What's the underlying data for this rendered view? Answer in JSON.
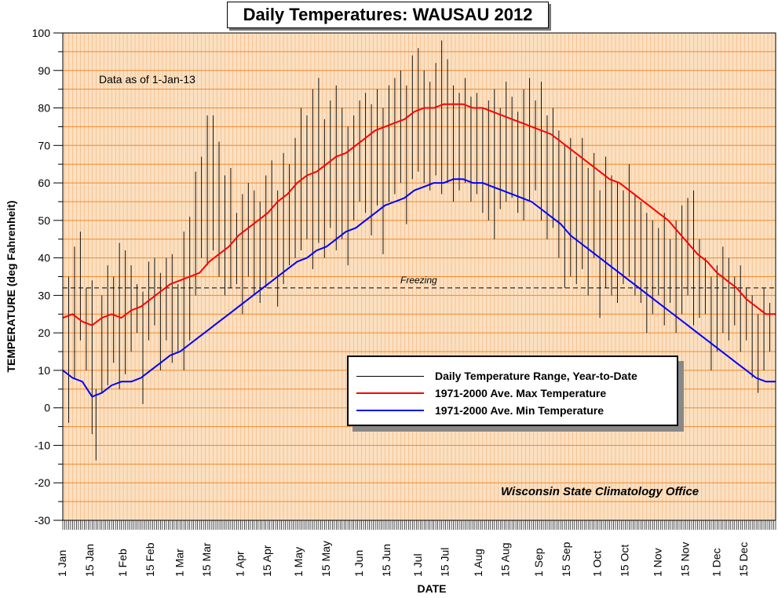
{
  "chart_data": {
    "type": "line",
    "title": "Daily Temperatures: WAUSAU 2012",
    "note": "Data as of 1-Jan-13",
    "organization": "Wisconsin State Climatology Office",
    "xlabel": "DATE",
    "ylabel": "TEMPERATURE (deg Fahrenheit)",
    "ylim": [
      -30,
      100
    ],
    "yticks": [
      100,
      90,
      80,
      70,
      60,
      50,
      40,
      30,
      20,
      10,
      0,
      -10,
      -20,
      -30
    ],
    "reference_line": {
      "value": 32,
      "label": "Freezing"
    },
    "grid": true,
    "legend": {
      "placement": "lower-right"
    },
    "x_tick_labels": [
      {
        "day": 0,
        "label": "1 Jan"
      },
      {
        "day": 14,
        "label": "15 Jan"
      },
      {
        "day": 31,
        "label": "1 Feb"
      },
      {
        "day": 45,
        "label": "15 Feb"
      },
      {
        "day": 60,
        "label": "1 Mar"
      },
      {
        "day": 74,
        "label": "15 Mar"
      },
      {
        "day": 91,
        "label": "1 Apr"
      },
      {
        "day": 105,
        "label": "15 Apr"
      },
      {
        "day": 121,
        "label": "1 May"
      },
      {
        "day": 135,
        "label": "15 May"
      },
      {
        "day": 152,
        "label": "1 Jun"
      },
      {
        "day": 166,
        "label": "15 Jun"
      },
      {
        "day": 182,
        "label": "1 Jul"
      },
      {
        "day": 196,
        "label": "15 Jul"
      },
      {
        "day": 213,
        "label": "1 Aug"
      },
      {
        "day": 227,
        "label": "15 Aug"
      },
      {
        "day": 244,
        "label": "1 Sep"
      },
      {
        "day": 258,
        "label": "15 Sep"
      },
      {
        "day": 274,
        "label": "1 Oct"
      },
      {
        "day": 288,
        "label": "15 Oct"
      },
      {
        "day": 305,
        "label": "1 Nov"
      },
      {
        "day": 319,
        "label": "15 Nov"
      },
      {
        "day": 335,
        "label": "1 Dec"
      },
      {
        "day": 349,
        "label": "15 Dec"
      }
    ],
    "series": [
      {
        "name": "Daily Temperature Range, Year-to-Date",
        "color": "#000000",
        "style": "range-bars",
        "ranges": [
          {
            "day": 0,
            "low": 18,
            "high": 40
          },
          {
            "day": 3,
            "low": -4,
            "high": 35
          },
          {
            "day": 6,
            "low": 8,
            "high": 43
          },
          {
            "day": 9,
            "low": 18,
            "high": 47
          },
          {
            "day": 12,
            "low": 10,
            "high": 32
          },
          {
            "day": 15,
            "low": -7,
            "high": 34
          },
          {
            "day": 17,
            "low": -14,
            "high": 5
          },
          {
            "day": 20,
            "low": 4,
            "high": 30
          },
          {
            "day": 23,
            "low": 6,
            "high": 38
          },
          {
            "day": 26,
            "low": 12,
            "high": 35
          },
          {
            "day": 29,
            "low": 5,
            "high": 44
          },
          {
            "day": 32,
            "low": 9,
            "high": 42
          },
          {
            "day": 35,
            "low": 15,
            "high": 38
          },
          {
            "day": 38,
            "low": 20,
            "high": 33
          },
          {
            "day": 41,
            "low": 1,
            "high": 31
          },
          {
            "day": 44,
            "low": 18,
            "high": 39
          },
          {
            "day": 47,
            "low": 22,
            "high": 40
          },
          {
            "day": 50,
            "low": 10,
            "high": 36
          },
          {
            "day": 53,
            "low": 18,
            "high": 40
          },
          {
            "day": 56,
            "low": 12,
            "high": 41
          },
          {
            "day": 59,
            "low": 15,
            "high": 33
          },
          {
            "day": 62,
            "low": 10,
            "high": 47
          },
          {
            "day": 65,
            "low": 18,
            "high": 51
          },
          {
            "day": 68,
            "low": 30,
            "high": 63
          },
          {
            "day": 71,
            "low": 40,
            "high": 67
          },
          {
            "day": 74,
            "low": 38,
            "high": 78
          },
          {
            "day": 77,
            "low": 42,
            "high": 78
          },
          {
            "day": 80,
            "low": 35,
            "high": 71
          },
          {
            "day": 83,
            "low": 30,
            "high": 62
          },
          {
            "day": 86,
            "low": 32,
            "high": 64
          },
          {
            "day": 89,
            "low": 33,
            "high": 52
          },
          {
            "day": 92,
            "low": 25,
            "high": 57
          },
          {
            "day": 95,
            "low": 35,
            "high": 60
          },
          {
            "day": 98,
            "low": 30,
            "high": 58
          },
          {
            "day": 101,
            "low": 28,
            "high": 55
          },
          {
            "day": 104,
            "low": 32,
            "high": 62
          },
          {
            "day": 107,
            "low": 35,
            "high": 66
          },
          {
            "day": 110,
            "low": 27,
            "high": 58
          },
          {
            "day": 113,
            "low": 33,
            "high": 68
          },
          {
            "day": 116,
            "low": 38,
            "high": 65
          },
          {
            "day": 119,
            "low": 40,
            "high": 72
          },
          {
            "day": 122,
            "low": 42,
            "high": 80
          },
          {
            "day": 125,
            "low": 45,
            "high": 78
          },
          {
            "day": 128,
            "low": 37,
            "high": 85
          },
          {
            "day": 131,
            "low": 44,
            "high": 88
          },
          {
            "day": 134,
            "low": 40,
            "high": 77
          },
          {
            "day": 137,
            "low": 48,
            "high": 82
          },
          {
            "day": 140,
            "low": 42,
            "high": 86
          },
          {
            "day": 143,
            "low": 45,
            "high": 80
          },
          {
            "day": 146,
            "low": 38,
            "high": 75
          },
          {
            "day": 149,
            "low": 50,
            "high": 78
          },
          {
            "day": 152,
            "low": 55,
            "high": 82
          },
          {
            "day": 155,
            "low": 52,
            "high": 84
          },
          {
            "day": 158,
            "low": 46,
            "high": 81
          },
          {
            "day": 161,
            "low": 54,
            "high": 85
          },
          {
            "day": 164,
            "low": 41,
            "high": 80
          },
          {
            "day": 167,
            "low": 55,
            "high": 86
          },
          {
            "day": 170,
            "low": 57,
            "high": 88
          },
          {
            "day": 173,
            "low": 60,
            "high": 90
          },
          {
            "day": 176,
            "low": 49,
            "high": 86
          },
          {
            "day": 179,
            "low": 61,
            "high": 94
          },
          {
            "day": 182,
            "low": 63,
            "high": 96
          },
          {
            "day": 185,
            "low": 60,
            "high": 90
          },
          {
            "day": 188,
            "low": 58,
            "high": 87
          },
          {
            "day": 191,
            "low": 62,
            "high": 92
          },
          {
            "day": 194,
            "low": 57,
            "high": 98
          },
          {
            "day": 197,
            "low": 60,
            "high": 93
          },
          {
            "day": 200,
            "low": 55,
            "high": 86
          },
          {
            "day": 203,
            "low": 58,
            "high": 84
          },
          {
            "day": 206,
            "low": 60,
            "high": 88
          },
          {
            "day": 209,
            "low": 55,
            "high": 83
          },
          {
            "day": 212,
            "low": 57,
            "high": 84
          },
          {
            "day": 215,
            "low": 52,
            "high": 80
          },
          {
            "day": 218,
            "low": 50,
            "high": 82
          },
          {
            "day": 221,
            "low": 45,
            "high": 85
          },
          {
            "day": 224,
            "low": 53,
            "high": 80
          },
          {
            "day": 227,
            "low": 55,
            "high": 87
          },
          {
            "day": 230,
            "low": 56,
            "high": 83
          },
          {
            "day": 233,
            "low": 52,
            "high": 79
          },
          {
            "day": 236,
            "low": 50,
            "high": 85
          },
          {
            "day": 239,
            "low": 55,
            "high": 88
          },
          {
            "day": 242,
            "low": 58,
            "high": 82
          },
          {
            "day": 245,
            "low": 50,
            "high": 87
          },
          {
            "day": 248,
            "low": 45,
            "high": 78
          },
          {
            "day": 251,
            "low": 48,
            "high": 80
          },
          {
            "day": 254,
            "low": 40,
            "high": 74
          },
          {
            "day": 257,
            "low": 32,
            "high": 70
          },
          {
            "day": 260,
            "low": 35,
            "high": 72
          },
          {
            "day": 263,
            "low": 33,
            "high": 67
          },
          {
            "day": 266,
            "low": 37,
            "high": 72
          },
          {
            "day": 269,
            "low": 30,
            "high": 64
          },
          {
            "day": 272,
            "low": 40,
            "high": 68
          },
          {
            "day": 275,
            "low": 24,
            "high": 58
          },
          {
            "day": 278,
            "low": 32,
            "high": 67
          },
          {
            "day": 281,
            "low": 30,
            "high": 62
          },
          {
            "day": 284,
            "low": 28,
            "high": 60
          },
          {
            "day": 287,
            "low": 33,
            "high": 58
          },
          {
            "day": 290,
            "low": 35,
            "high": 65
          },
          {
            "day": 293,
            "low": 30,
            "high": 57
          },
          {
            "day": 296,
            "low": 28,
            "high": 55
          },
          {
            "day": 299,
            "low": 20,
            "high": 52
          },
          {
            "day": 302,
            "low": 25,
            "high": 50
          },
          {
            "day": 305,
            "low": 30,
            "high": 48
          },
          {
            "day": 308,
            "low": 22,
            "high": 52
          },
          {
            "day": 311,
            "low": 28,
            "high": 45
          },
          {
            "day": 314,
            "low": 20,
            "high": 50
          },
          {
            "day": 317,
            "low": 25,
            "high": 54
          },
          {
            "day": 320,
            "low": 30,
            "high": 56
          },
          {
            "day": 323,
            "low": 22,
            "high": 58
          },
          {
            "day": 326,
            "low": 24,
            "high": 45
          },
          {
            "day": 329,
            "low": 25,
            "high": 40
          },
          {
            "day": 332,
            "low": 10,
            "high": 35
          },
          {
            "day": 335,
            "low": 15,
            "high": 38
          },
          {
            "day": 338,
            "low": 20,
            "high": 43
          },
          {
            "day": 341,
            "low": 18,
            "high": 40
          },
          {
            "day": 344,
            "low": 22,
            "high": 35
          },
          {
            "day": 347,
            "low": 15,
            "high": 38
          },
          {
            "day": 350,
            "low": 18,
            "high": 32
          },
          {
            "day": 353,
            "low": 8,
            "high": 30
          },
          {
            "day": 356,
            "low": 4,
            "high": 25
          },
          {
            "day": 359,
            "low": 10,
            "high": 32
          },
          {
            "day": 362,
            "low": 15,
            "high": 28
          },
          {
            "day": 365,
            "low": 2,
            "high": 20
          }
        ]
      },
      {
        "name": "1971-2000 Ave. Max Temperature",
        "color": "#ff0000",
        "x": [
          0,
          5,
          10,
          15,
          20,
          25,
          30,
          35,
          40,
          45,
          50,
          55,
          60,
          65,
          70,
          75,
          80,
          85,
          90,
          95,
          100,
          105,
          110,
          115,
          120,
          125,
          130,
          135,
          140,
          145,
          150,
          155,
          160,
          165,
          170,
          175,
          180,
          185,
          190,
          195,
          200,
          205,
          210,
          215,
          220,
          225,
          230,
          235,
          240,
          245,
          250,
          255,
          260,
          265,
          270,
          275,
          280,
          285,
          290,
          295,
          300,
          305,
          310,
          315,
          320,
          325,
          330,
          335,
          340,
          345,
          350,
          355,
          360,
          365
        ],
        "values": [
          24,
          25,
          23,
          22,
          24,
          25,
          24,
          26,
          27,
          29,
          31,
          33,
          34,
          35,
          36,
          39,
          41,
          43,
          46,
          48,
          50,
          52,
          55,
          57,
          60,
          62,
          63,
          65,
          67,
          68,
          70,
          72,
          74,
          75,
          76,
          77,
          79,
          80,
          80,
          81,
          81,
          81,
          80,
          80,
          79,
          78,
          77,
          76,
          75,
          74,
          73,
          71,
          69,
          67,
          65,
          63,
          61,
          60,
          58,
          56,
          54,
          52,
          50,
          47,
          44,
          41,
          39,
          36,
          34,
          32,
          29,
          27,
          25,
          25
        ]
      },
      {
        "name": "1971-2000 Ave. Min Temperature",
        "color": "#0000ff",
        "x": [
          0,
          5,
          10,
          15,
          20,
          25,
          30,
          35,
          40,
          45,
          50,
          55,
          60,
          65,
          70,
          75,
          80,
          85,
          90,
          95,
          100,
          105,
          110,
          115,
          120,
          125,
          130,
          135,
          140,
          145,
          150,
          155,
          160,
          165,
          170,
          175,
          180,
          185,
          190,
          195,
          200,
          205,
          210,
          215,
          220,
          225,
          230,
          235,
          240,
          245,
          250,
          255,
          260,
          265,
          270,
          275,
          280,
          285,
          290,
          295,
          300,
          305,
          310,
          315,
          320,
          325,
          330,
          335,
          340,
          345,
          350,
          355,
          360,
          365
        ],
        "values": [
          10,
          8,
          7,
          3,
          4,
          6,
          7,
          7,
          8,
          10,
          12,
          14,
          15,
          17,
          19,
          21,
          23,
          25,
          27,
          29,
          31,
          33,
          35,
          37,
          39,
          40,
          42,
          43,
          45,
          47,
          48,
          50,
          52,
          54,
          55,
          56,
          58,
          59,
          60,
          60,
          61,
          61,
          60,
          60,
          59,
          58,
          57,
          56,
          55,
          53,
          51,
          49,
          46,
          44,
          42,
          40,
          38,
          36,
          34,
          32,
          30,
          28,
          26,
          24,
          22,
          20,
          18,
          16,
          14,
          12,
          10,
          8,
          7,
          7
        ]
      }
    ]
  }
}
